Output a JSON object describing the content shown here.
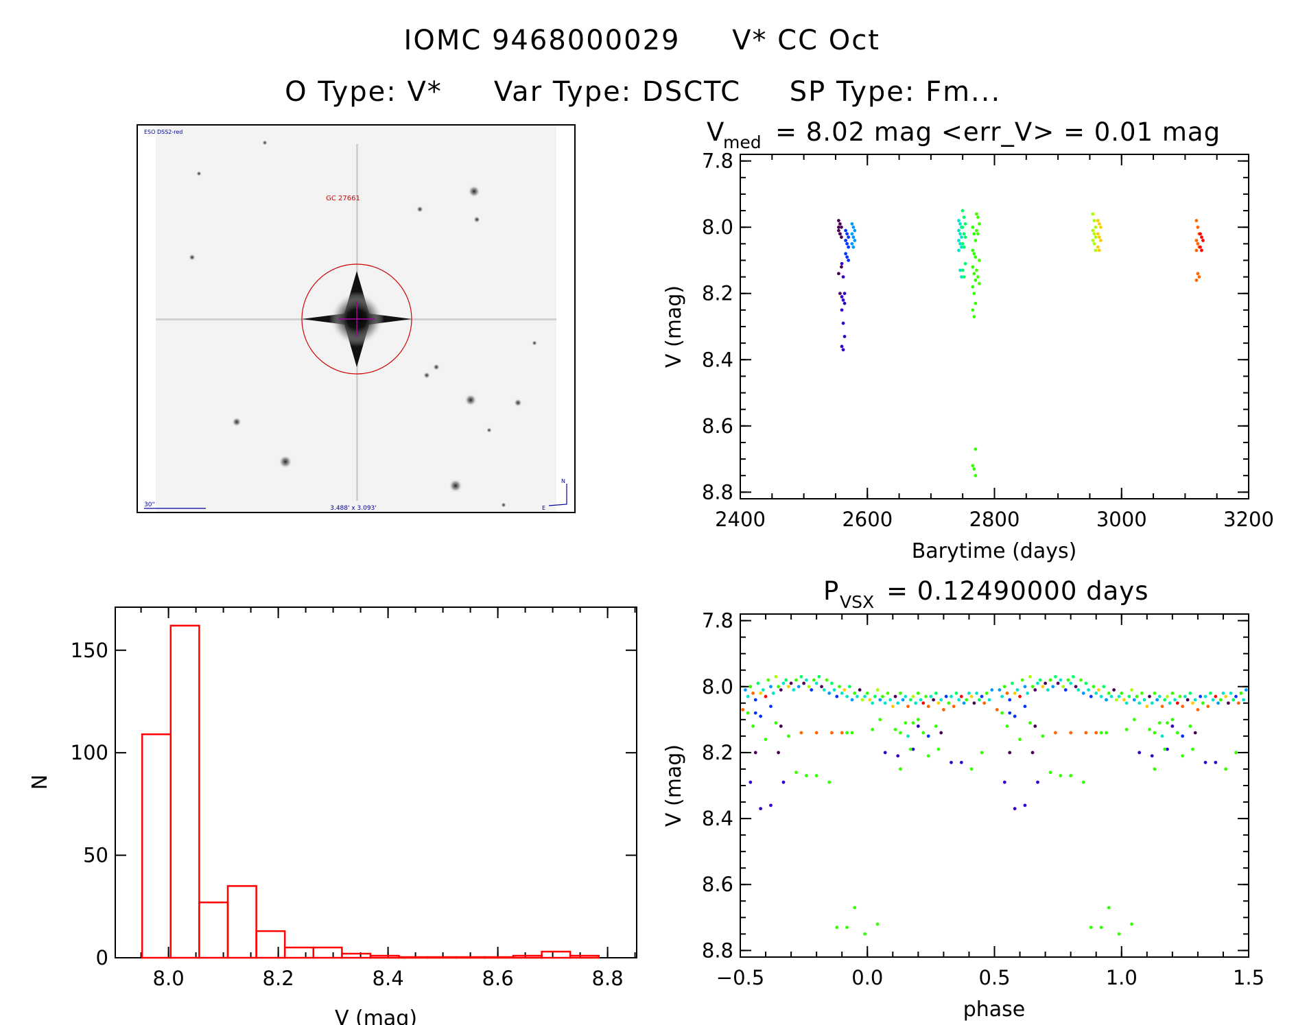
{
  "header": {
    "title_id": "IOMC 9468000029",
    "title_name": "V* CC Oct",
    "subtitle_otype": "O Type: V*",
    "subtitle_vartype": "Var Type: DSCTC",
    "subtitle_sptype": "SP Type: Fm..."
  },
  "finder_image": {
    "survey_label": "ESO DSS2-red",
    "object_label": "GC 27661",
    "scale_label": "30\"",
    "fov_label": "3.488' x 3.093'",
    "north_label": "N",
    "east_label": "E",
    "circle_color": "#cc0000",
    "label_color": "#000099"
  },
  "palette": [
    "#4b0055",
    "#3300cc",
    "#0033ff",
    "#0099ff",
    "#00e6c8",
    "#00ff66",
    "#33ff00",
    "#44ff00",
    "#aaff00",
    "#ffcc00",
    "#ff6600",
    "#ff0000"
  ],
  "chart_data": [
    {
      "id": "light_curve",
      "type": "scatter",
      "title_main": "V",
      "title_sub": "med",
      "title_rest": "= 8.02 mag <err_V> = 0.01 mag",
      "xlabel": "Barytime (days)",
      "ylabel": "V (mag)",
      "xlim": [
        2400,
        3200
      ],
      "ylim": [
        7.78,
        8.82
      ],
      "y_inverted": true,
      "xticks": [
        2400,
        2600,
        2800,
        3000,
        3200
      ],
      "xtick_labels": [
        "2400",
        "2600",
        "2800",
        "3000",
        "3200"
      ],
      "yticks": [
        7.8,
        8.0,
        8.2,
        8.4,
        8.6,
        8.8
      ],
      "ytick_labels": [
        "7.8",
        "8.0",
        "8.2",
        "8.4",
        "8.6",
        "8.8"
      ],
      "series": [
        {
          "color_index": 0,
          "t": 2557,
          "mags": [
            7.98,
            7.99,
            8.0,
            8.01,
            8.02,
            8.03,
            8.0,
            8.02,
            8.12,
            8.14,
            8.2
          ]
        },
        {
          "color_index": 1,
          "t": 2562,
          "mags": [
            8.11,
            8.15,
            8.2,
            8.21,
            8.22,
            8.23,
            8.25,
            8.29,
            8.33,
            8.36,
            8.37
          ]
        },
        {
          "color_index": 2,
          "t": 2568,
          "mags": [
            8.01,
            8.02,
            8.03,
            8.04,
            8.05,
            8.06,
            8.08,
            8.09,
            8.1
          ]
        },
        {
          "color_index": 3,
          "t": 2578,
          "mags": [
            7.99,
            8.0,
            8.01,
            8.02,
            8.03,
            8.04,
            8.05,
            8.06
          ]
        },
        {
          "color_index": 4,
          "t": 2746,
          "mags": [
            7.98,
            7.99,
            8.0,
            8.01,
            8.02,
            8.03,
            8.04,
            8.05,
            8.06,
            8.07,
            8.13,
            8.15
          ]
        },
        {
          "color_index": 5,
          "t": 2752,
          "mags": [
            7.95,
            7.97,
            7.99,
            8.0,
            8.02,
            8.03,
            8.05,
            8.06,
            8.11,
            8.13,
            8.15
          ]
        },
        {
          "color_index": 6,
          "t": 2768,
          "mags": [
            8.0,
            8.02,
            8.04,
            8.07,
            8.08,
            8.09,
            8.12,
            8.14,
            8.16,
            8.18,
            8.2,
            8.23,
            8.25,
            8.27,
            8.67,
            8.72,
            8.73,
            8.75
          ]
        },
        {
          "color_index": 7,
          "t": 2774,
          "mags": [
            7.96,
            7.97,
            7.99,
            8.01,
            8.02,
            8.1,
            8.13,
            8.15,
            8.17
          ]
        },
        {
          "color_index": 8,
          "t": 2957,
          "mags": [
            7.96,
            7.98,
            8.0,
            8.01,
            8.02,
            8.03,
            8.04,
            8.05,
            8.07
          ]
        },
        {
          "color_index": 9,
          "t": 2965,
          "mags": [
            7.98,
            7.99,
            8.0,
            8.02,
            8.03,
            8.04,
            8.06,
            8.07
          ]
        },
        {
          "color_index": 10,
          "t": 3120,
          "mags": [
            7.98,
            8.0,
            8.02,
            8.04,
            8.05,
            8.06,
            8.07,
            8.14,
            8.15,
            8.16
          ]
        },
        {
          "color_index": 11,
          "t": 3126,
          "mags": [
            8.02,
            8.03,
            8.04,
            8.06,
            8.07
          ]
        }
      ]
    },
    {
      "id": "histogram",
      "type": "bar",
      "xlabel": "V (mag)",
      "ylabel": "N",
      "xlim": [
        7.903,
        8.853
      ],
      "ylim": [
        0,
        171
      ],
      "xticks": [
        8.0,
        8.2,
        8.4,
        8.6,
        8.8
      ],
      "xtick_labels": [
        "8.0",
        "8.2",
        "8.4",
        "8.6",
        "8.8"
      ],
      "yticks": [
        0,
        50,
        100,
        150
      ],
      "ytick_labels": [
        "0",
        "50",
        "100",
        "150"
      ],
      "bar_color": "#ff0000",
      "bin_edges": [
        7.952,
        8.004,
        8.056,
        8.108,
        8.16,
        8.212,
        8.264,
        8.316,
        8.368,
        8.42,
        8.472,
        8.524,
        8.576,
        8.628,
        8.68,
        8.732,
        8.784
      ],
      "values": [
        109,
        162,
        27,
        35,
        13,
        5,
        5,
        2,
        1,
        0,
        0,
        0,
        0,
        1,
        3,
        1
      ]
    },
    {
      "id": "phase_curve",
      "type": "scatter",
      "title_main": "P",
      "title_sub": "VSX",
      "title_rest": "= 0.12490000 days",
      "xlabel": "phase",
      "ylabel": "V (mag)",
      "xlim": [
        -0.5,
        1.5
      ],
      "ylim": [
        7.78,
        8.82
      ],
      "y_inverted": true,
      "xticks": [
        -0.5,
        0.0,
        0.5,
        1.0,
        1.5
      ],
      "xtick_labels": [
        "−0.5",
        "0.0",
        "0.5",
        "1.0",
        "1.5"
      ],
      "yticks": [
        7.8,
        8.0,
        8.2,
        8.4,
        8.6,
        8.8
      ],
      "ytick_labels": [
        "7.8",
        "8.0",
        "8.2",
        "8.4",
        "8.6",
        "8.8"
      ],
      "points_phase_mag_color": [
        [
          -0.48,
          8.01,
          3
        ],
        [
          -0.47,
          8.03,
          4
        ],
        [
          -0.46,
          8.0,
          6
        ],
        [
          -0.45,
          8.02,
          10
        ],
        [
          -0.44,
          8.04,
          2
        ],
        [
          -0.43,
          7.99,
          5
        ],
        [
          -0.42,
          8.02,
          9
        ],
        [
          -0.41,
          8.01,
          4
        ],
        [
          -0.4,
          8.03,
          11
        ],
        [
          -0.39,
          7.98,
          7
        ],
        [
          -0.38,
          8.0,
          3
        ],
        [
          -0.37,
          8.02,
          4
        ],
        [
          -0.36,
          7.97,
          8
        ],
        [
          -0.35,
          8.0,
          6
        ],
        [
          -0.34,
          8.01,
          0
        ],
        [
          -0.33,
          7.99,
          4
        ],
        [
          -0.32,
          7.98,
          5
        ],
        [
          -0.31,
          8.0,
          9
        ],
        [
          -0.3,
          7.99,
          0
        ],
        [
          -0.29,
          8.01,
          4
        ],
        [
          -0.28,
          7.98,
          6
        ],
        [
          -0.27,
          8.0,
          3
        ],
        [
          -0.26,
          7.97,
          5
        ],
        [
          -0.25,
          7.99,
          0
        ],
        [
          -0.24,
          7.98,
          4
        ],
        [
          -0.23,
          8.0,
          8
        ],
        [
          -0.22,
          8.01,
          2
        ],
        [
          -0.21,
          7.98,
          6
        ],
        [
          -0.2,
          7.99,
          4
        ],
        [
          -0.19,
          7.97,
          5
        ],
        [
          -0.18,
          8.0,
          0
        ],
        [
          -0.17,
          8.01,
          4
        ],
        [
          -0.16,
          7.98,
          7
        ],
        [
          -0.15,
          8.02,
          3
        ],
        [
          -0.14,
          7.99,
          5
        ],
        [
          -0.13,
          8.01,
          4
        ],
        [
          -0.12,
          8.03,
          2
        ],
        [
          -0.11,
          8.0,
          6
        ],
        [
          -0.1,
          8.02,
          4
        ],
        [
          -0.09,
          8.01,
          9
        ],
        [
          -0.08,
          8.03,
          4
        ],
        [
          -0.07,
          8.0,
          5
        ],
        [
          -0.06,
          8.04,
          3
        ],
        [
          -0.05,
          8.02,
          6
        ],
        [
          -0.04,
          8.03,
          4
        ],
        [
          -0.03,
          8.01,
          0
        ],
        [
          -0.02,
          8.04,
          8
        ],
        [
          -0.01,
          8.03,
          4
        ],
        [
          0.0,
          8.02,
          6
        ],
        [
          0.01,
          8.04,
          9
        ],
        [
          0.02,
          8.05,
          4
        ],
        [
          0.03,
          8.03,
          5
        ],
        [
          0.04,
          8.01,
          8
        ],
        [
          0.05,
          8.04,
          3
        ],
        [
          0.06,
          8.03,
          6
        ],
        [
          0.07,
          8.05,
          4
        ],
        [
          0.08,
          8.02,
          7
        ],
        [
          0.09,
          8.04,
          4
        ],
        [
          0.1,
          8.06,
          9
        ],
        [
          0.11,
          8.03,
          0
        ],
        [
          0.12,
          8.05,
          4
        ],
        [
          0.13,
          8.02,
          6
        ],
        [
          0.14,
          8.04,
          3
        ],
        [
          0.15,
          8.03,
          4
        ],
        [
          0.16,
          8.06,
          10
        ],
        [
          0.17,
          8.04,
          5
        ],
        [
          0.18,
          8.03,
          8
        ],
        [
          0.19,
          8.05,
          4
        ],
        [
          0.2,
          8.02,
          6
        ],
        [
          0.21,
          8.04,
          4
        ],
        [
          0.22,
          8.05,
          11
        ],
        [
          0.23,
          8.03,
          7
        ],
        [
          0.24,
          8.06,
          10
        ],
        [
          0.25,
          8.03,
          4
        ],
        [
          0.26,
          8.04,
          0
        ],
        [
          0.27,
          8.02,
          5
        ],
        [
          0.28,
          8.05,
          9
        ],
        [
          0.29,
          8.04,
          4
        ],
        [
          0.3,
          8.07,
          10
        ],
        [
          0.31,
          8.03,
          2
        ],
        [
          0.32,
          8.05,
          6
        ],
        [
          0.33,
          8.03,
          4
        ],
        [
          0.34,
          8.06,
          10
        ],
        [
          0.35,
          8.02,
          5
        ],
        [
          0.36,
          8.04,
          4
        ],
        [
          0.37,
          8.03,
          11
        ],
        [
          0.38,
          8.05,
          3
        ],
        [
          0.39,
          8.04,
          6
        ],
        [
          0.4,
          8.02,
          4
        ],
        [
          0.41,
          8.03,
          9
        ],
        [
          0.42,
          8.05,
          0
        ],
        [
          0.43,
          8.02,
          4
        ],
        [
          0.44,
          8.04,
          5
        ],
        [
          0.45,
          8.03,
          2
        ],
        [
          0.46,
          8.05,
          10
        ],
        [
          0.47,
          8.02,
          6
        ],
        [
          0.48,
          8.04,
          4
        ],
        [
          0.49,
          8.01,
          3
        ],
        [
          -0.49,
          8.07,
          10
        ],
        [
          -0.47,
          8.08,
          6
        ],
        [
          -0.45,
          8.12,
          6
        ],
        [
          -0.44,
          8.08,
          2
        ],
        [
          -0.42,
          8.09,
          2
        ],
        [
          -0.4,
          8.16,
          6
        ],
        [
          -0.38,
          8.06,
          2
        ],
        [
          -0.36,
          8.11,
          6
        ],
        [
          -0.34,
          8.12,
          0
        ],
        [
          -0.31,
          8.15,
          6
        ],
        [
          -0.26,
          8.14,
          10
        ],
        [
          -0.2,
          8.14,
          10
        ],
        [
          -0.14,
          8.14,
          10
        ],
        [
          -0.1,
          8.14,
          10
        ],
        [
          -0.08,
          8.14,
          6
        ],
        [
          -0.06,
          8.14,
          6
        ],
        [
          0.11,
          8.13,
          6
        ],
        [
          0.13,
          8.14,
          6
        ],
        [
          0.15,
          8.11,
          6
        ],
        [
          0.16,
          8.15,
          4
        ],
        [
          0.18,
          8.11,
          6
        ],
        [
          0.2,
          8.1,
          6
        ],
        [
          0.22,
          8.14,
          6
        ],
        [
          0.24,
          8.15,
          2
        ],
        [
          0.27,
          8.12,
          6
        ],
        [
          0.29,
          8.14,
          0
        ],
        [
          0.05,
          8.1,
          6
        ],
        [
          0.02,
          8.13,
          6
        ],
        [
          -0.44,
          8.2,
          0
        ],
        [
          -0.35,
          8.2,
          0
        ],
        [
          -0.46,
          8.29,
          1
        ],
        [
          -0.42,
          8.37,
          1
        ],
        [
          -0.38,
          8.36,
          1
        ],
        [
          -0.33,
          8.29,
          1
        ],
        [
          -0.28,
          8.26,
          6
        ],
        [
          -0.24,
          8.27,
          6
        ],
        [
          -0.2,
          8.27,
          6
        ],
        [
          -0.15,
          8.29,
          6
        ],
        [
          0.07,
          8.2,
          1
        ],
        [
          0.12,
          8.21,
          1
        ],
        [
          0.18,
          8.19,
          1
        ],
        [
          0.2,
          8.12,
          1
        ],
        [
          0.24,
          8.21,
          6
        ],
        [
          0.28,
          8.19,
          6
        ],
        [
          0.33,
          8.23,
          1
        ],
        [
          0.37,
          8.23,
          1
        ],
        [
          0.41,
          8.25,
          6
        ],
        [
          0.45,
          8.2,
          6
        ],
        [
          0.13,
          8.25,
          6
        ],
        [
          0.17,
          8.19,
          6
        ],
        [
          -0.12,
          8.73,
          6
        ],
        [
          -0.08,
          8.73,
          6
        ],
        [
          -0.05,
          8.67,
          6
        ],
        [
          -0.01,
          8.75,
          6
        ],
        [
          0.04,
          8.72,
          6
        ]
      ]
    }
  ]
}
